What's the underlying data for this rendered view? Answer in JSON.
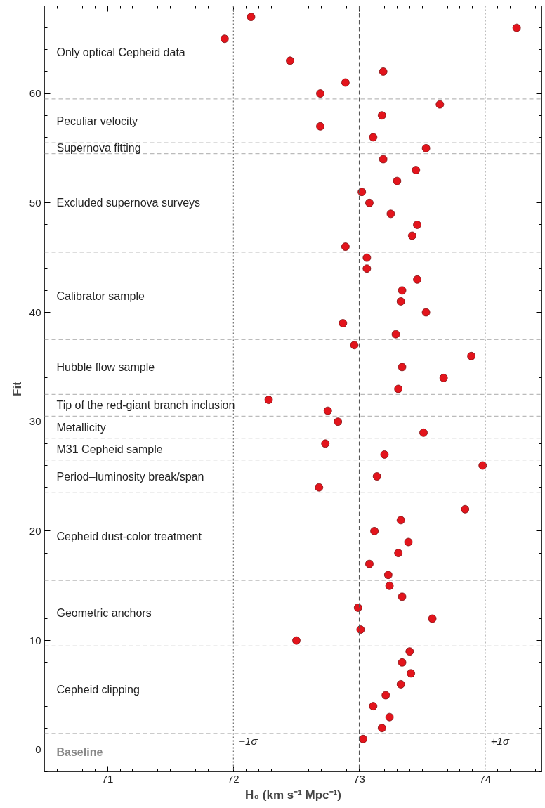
{
  "chart_data": {
    "type": "scatter",
    "xlabel": "H₀ (km s⁻¹ Mpc⁻¹)",
    "ylabel": "Fit",
    "series": [
      {
        "color": "#e3141c",
        "x": [
          73.03,
          73.18,
          73.24,
          73.11,
          73.21,
          73.33,
          73.41,
          73.34,
          73.4,
          72.5,
          73.01,
          73.58,
          72.99,
          73.34,
          73.24,
          73.23,
          73.08,
          73.31,
          73.39,
          73.12,
          73.33,
          73.84,
          72.68,
          73.14,
          73.98,
          73.2,
          72.73,
          73.51,
          72.83,
          72.75,
          72.28,
          73.31,
          73.67,
          73.34,
          73.89,
          72.96,
          73.29,
          72.87,
          73.53,
          73.33,
          73.34,
          73.46,
          73.06,
          73.06,
          72.89,
          73.42,
          73.46,
          73.25,
          73.08,
          73.02,
          73.3,
          73.45,
          73.19,
          73.53,
          73.11,
          72.69,
          73.18,
          73.64,
          72.69,
          72.89,
          73.19,
          72.45,
          71.93,
          74.25,
          72.14
        ],
        "values": [
          1,
          2,
          3,
          4,
          5,
          6,
          7,
          8,
          9,
          10,
          11,
          12,
          13,
          14,
          15,
          16,
          17,
          18,
          19,
          20,
          21,
          22,
          24,
          25,
          26,
          27,
          28,
          29,
          30,
          31,
          32,
          33,
          34,
          35,
          36,
          37,
          38,
          39,
          40,
          41,
          42,
          43,
          44,
          45,
          46,
          47,
          48,
          49,
          50,
          51,
          52,
          53,
          54,
          55,
          56,
          57,
          58,
          59,
          60,
          61,
          62,
          63,
          65,
          66,
          67
        ]
      }
    ],
    "marker": "circle",
    "xlim": [
      70.5,
      74.45
    ],
    "xticks": [
      71,
      72,
      73,
      74
    ],
    "ylim": [
      -2,
      68
    ],
    "yticks": [
      0,
      10,
      20,
      30,
      40,
      50,
      60
    ],
    "ref_lines": [
      {
        "axis": "x",
        "value": 73,
        "color": "#555555",
        "line_style": "dashed"
      },
      {
        "axis": "x",
        "value": 72,
        "label": "−1σ",
        "color": "#777777",
        "line_style": "dotted"
      },
      {
        "axis": "x",
        "value": 74,
        "label": "+1σ",
        "color": "#777777",
        "line_style": "dotted"
      },
      {
        "axis": "y",
        "value": 1.5,
        "color": "#bbbbbb",
        "line_style": "dashed"
      },
      {
        "axis": "y",
        "value": 9.5,
        "color": "#bbbbbb",
        "line_style": "dashed"
      },
      {
        "axis": "y",
        "value": 15.5,
        "color": "#bbbbbb",
        "line_style": "dashed"
      },
      {
        "axis": "y",
        "value": 23.5,
        "color": "#bbbbbb",
        "line_style": "dashed"
      },
      {
        "axis": "y",
        "value": 26.5,
        "color": "#bbbbbb",
        "line_style": "dashed"
      },
      {
        "axis": "y",
        "value": 28.5,
        "color": "#bbbbbb",
        "line_style": "dashed"
      },
      {
        "axis": "y",
        "value": 30.5,
        "color": "#bbbbbb",
        "line_style": "dashed"
      },
      {
        "axis": "y",
        "value": 32.5,
        "color": "#bbbbbb",
        "line_style": "dashed"
      },
      {
        "axis": "y",
        "value": 37.5,
        "color": "#bbbbbb",
        "line_style": "dashed"
      },
      {
        "axis": "y",
        "value": 45.5,
        "color": "#bbbbbb",
        "line_style": "dashed"
      },
      {
        "axis": "y",
        "value": 54.5,
        "color": "#bbbbbb",
        "line_style": "dashed"
      },
      {
        "axis": "y",
        "value": 55.5,
        "color": "#bbbbbb",
        "line_style": "dashed"
      },
      {
        "axis": "y",
        "value": 59.5,
        "color": "#bbbbbb",
        "line_style": "dashed"
      }
    ],
    "annotations": [
      "Only optical Cepheid data",
      "Peculiar velocity",
      "Supernova fitting",
      "Excluded supernova surveys",
      "Calibrator sample",
      "Hubble flow sample",
      "Tip of the red-giant branch inclusion",
      "Metallicity",
      "M31 Cepheid sample",
      "Period–luminosity break/span",
      "Cepheid dust-color treatment",
      "Geometric anchors",
      "Cepheid clipping",
      "Baseline"
    ]
  }
}
